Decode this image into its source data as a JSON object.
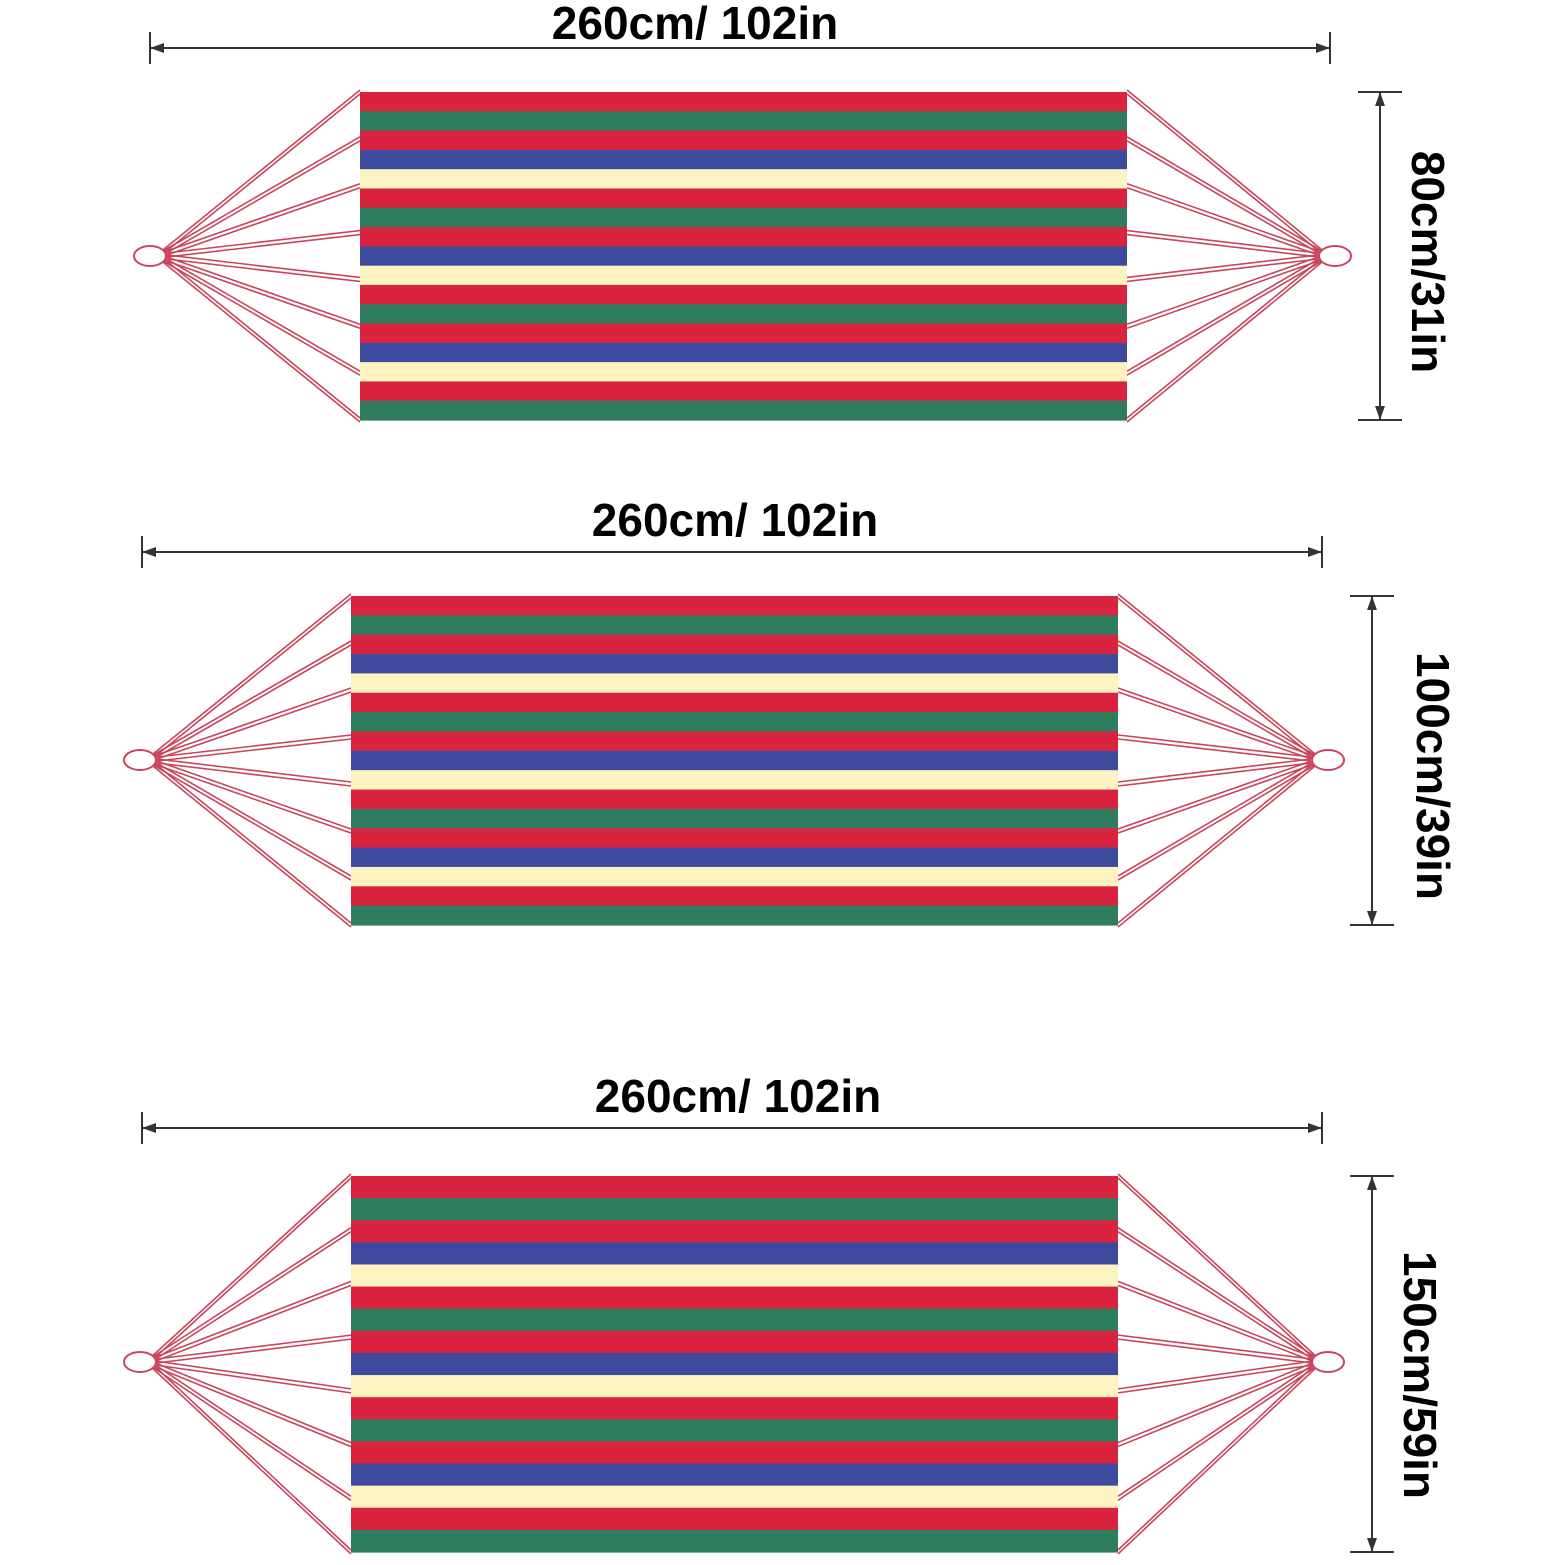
{
  "diagrams": [
    {
      "width_label": "260cm/ 102in",
      "height_label": "80cm/31in"
    },
    {
      "width_label": "260cm/ 102in",
      "height_label": "100cm/39in"
    },
    {
      "width_label": "260cm/ 102in",
      "height_label": "150cm/59in"
    }
  ],
  "colors": {
    "red": "#d9233f",
    "green": "#2e7d5e",
    "blue": "#3d4a9e",
    "cream": "#fcf3c0",
    "rope": "#c9455c",
    "dimension_line": "#333333"
  },
  "stripe_pattern": [
    "red",
    "green",
    "red",
    "blue",
    "cream",
    "red",
    "green",
    "red",
    "blue",
    "cream",
    "red",
    "green",
    "red",
    "blue",
    "cream",
    "red",
    "green"
  ]
}
